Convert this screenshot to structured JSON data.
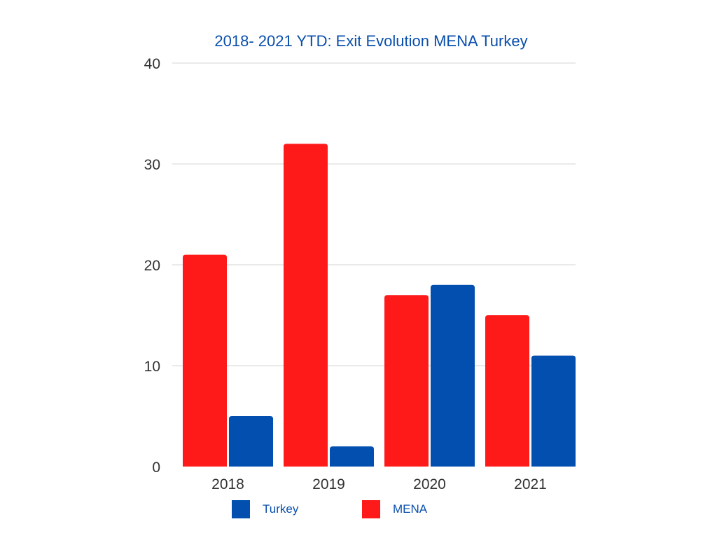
{
  "chart_data": {
    "type": "bar",
    "title": "2018- 2021 YTD: Exit Evolution MENA Turkey",
    "xlabel": "",
    "ylabel": "",
    "categories": [
      "2018",
      "2019",
      "2020",
      "2021"
    ],
    "series": [
      {
        "name": "MENA",
        "values": [
          21,
          32,
          17,
          15
        ],
        "color": "#ff1a1a"
      },
      {
        "name": "Turkey",
        "values": [
          5,
          2,
          18,
          11
        ],
        "color": "#024faf"
      }
    ],
    "ylim": [
      0,
      40
    ],
    "yticks": [
      "0",
      "10",
      "20",
      "30",
      "40"
    ],
    "grid": true,
    "legend_position": "bottom"
  },
  "legend": {
    "items": [
      {
        "label": "Turkey",
        "color": "#024faf"
      },
      {
        "label": "MENA",
        "color": "#ff1a1a"
      }
    ]
  },
  "colors": {
    "title": "#0a4fad",
    "grid": "#d6d6d6",
    "axis_text": "#333333"
  }
}
